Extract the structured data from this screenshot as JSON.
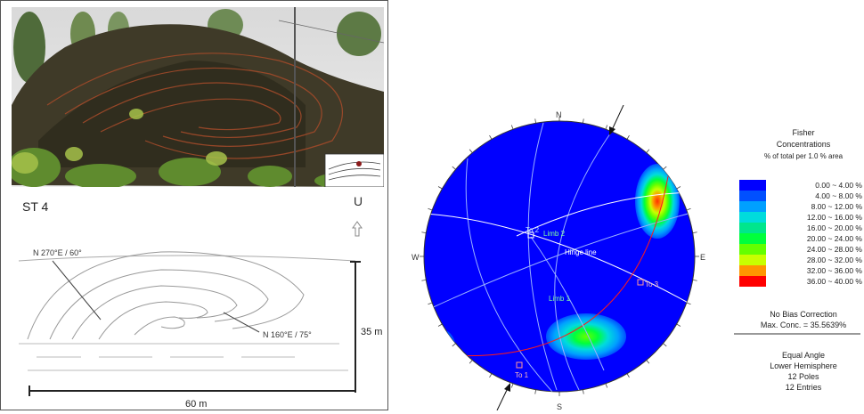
{
  "photo": {
    "description_icon": "outcrop-photo"
  },
  "sketch": {
    "station": "ST 4",
    "up_label": "U",
    "attitude_1": "N 270°E / 60°",
    "attitude_2": "N 160°E / 75°",
    "height_label": "35 m",
    "width_label": "60 m"
  },
  "stereonet": {
    "north": "N",
    "south": "S",
    "east": "E",
    "west": "W",
    "to1": "To 1",
    "to2": "To 2",
    "to3": "To 3",
    "limb1": "Limb 1",
    "limb2": "Limb 2",
    "hinge": "Hinge line"
  },
  "legend": {
    "title1": "Fisher",
    "title2": "Concentrations",
    "title3": "% of total per 1.0 % area",
    "bins": [
      {
        "label": "0.00 ~  4.00 %",
        "color": "#0000ff"
      },
      {
        "label": "4.00 ~  8.00 %",
        "color": "#0050ff"
      },
      {
        "label": "8.00 ~ 12.00 %",
        "color": "#00a0ff"
      },
      {
        "label": "12.00 ~ 16.00 %",
        "color": "#00dcdc"
      },
      {
        "label": "16.00 ~ 20.00 %",
        "color": "#00e68c"
      },
      {
        "label": "20.00 ~ 24.00 %",
        "color": "#00ff3c"
      },
      {
        "label": "24.00 ~ 28.00 %",
        "color": "#64ff00"
      },
      {
        "label": "28.00 ~ 32.00 %",
        "color": "#c8ff00"
      },
      {
        "label": "32.00 ~ 36.00 %",
        "color": "#ff9600"
      },
      {
        "label": "36.00 ~ 40.00 %",
        "color": "#ff0000"
      }
    ],
    "bias": "No Bias Correction",
    "maxconc": "Max. Conc. = 35.5639%",
    "projection": "Equal Angle",
    "hemisphere": "Lower Hemisphere",
    "poles": "12 Poles",
    "entries": "12 Entries"
  }
}
